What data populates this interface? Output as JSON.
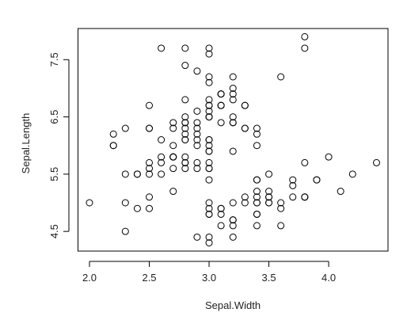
{
  "chart_data": {
    "type": "scatter",
    "x_label": "Sepal.Width",
    "y_label": "Sepal.Length",
    "x": [
      3.5,
      3.0,
      3.2,
      3.1,
      3.6,
      3.9,
      3.4,
      3.4,
      2.9,
      3.1,
      3.7,
      3.4,
      3.0,
      3.0,
      4.0,
      4.4,
      3.9,
      3.5,
      3.8,
      3.8,
      3.4,
      3.7,
      3.6,
      3.3,
      3.4,
      3.0,
      3.4,
      3.5,
      3.4,
      3.2,
      3.1,
      3.4,
      4.1,
      4.2,
      3.1,
      3.2,
      3.5,
      3.6,
      3.0,
      3.4,
      3.5,
      2.3,
      3.2,
      3.5,
      3.8,
      3.0,
      3.8,
      3.2,
      3.7,
      3.3,
      3.2,
      3.2,
      3.1,
      2.3,
      2.8,
      2.8,
      3.3,
      2.4,
      2.9,
      2.7,
      2.0,
      3.0,
      2.2,
      2.9,
      2.9,
      3.1,
      3.0,
      2.7,
      2.2,
      2.5,
      3.2,
      2.8,
      2.5,
      2.8,
      2.9,
      3.0,
      2.8,
      3.0,
      2.9,
      2.6,
      2.4,
      2.4,
      2.7,
      2.7,
      3.0,
      3.4,
      3.1,
      2.3,
      3.0,
      2.5,
      2.6,
      3.0,
      2.6,
      2.3,
      2.7,
      3.0,
      2.9,
      2.9,
      2.5,
      2.8,
      3.3,
      2.7,
      3.0,
      2.9,
      3.0,
      3.0,
      2.5,
      2.9,
      2.5,
      3.6,
      3.2,
      2.7,
      3.0,
      2.5,
      2.8,
      3.2,
      3.0,
      3.8,
      2.6,
      2.2,
      3.2,
      2.8,
      2.8,
      2.7,
      3.3,
      3.2,
      2.8,
      3.0,
      2.8,
      3.0,
      2.8,
      3.8,
      2.8,
      2.8,
      2.6,
      3.0,
      3.4,
      3.1,
      3.0,
      3.1,
      3.1,
      3.1,
      2.7,
      3.2,
      3.3,
      3.0,
      2.5,
      3.0,
      3.4,
      3.0
    ],
    "values": [
      5.1,
      4.9,
      4.7,
      4.6,
      5.0,
      5.4,
      4.6,
      5.0,
      4.4,
      4.9,
      5.4,
      4.8,
      4.8,
      4.3,
      5.8,
      5.7,
      5.4,
      5.1,
      5.7,
      5.1,
      5.4,
      5.1,
      4.6,
      5.1,
      4.8,
      5.0,
      5.0,
      5.2,
      5.2,
      4.7,
      4.8,
      5.4,
      5.2,
      5.5,
      4.9,
      5.0,
      5.5,
      4.9,
      4.4,
      5.1,
      5.0,
      4.5,
      4.4,
      5.0,
      5.1,
      4.8,
      5.1,
      4.6,
      5.3,
      5.0,
      7.0,
      6.4,
      6.9,
      5.5,
      6.5,
      5.7,
      6.3,
      4.9,
      6.6,
      5.2,
      5.0,
      5.9,
      6.0,
      6.1,
      5.6,
      6.7,
      5.6,
      5.8,
      6.2,
      5.6,
      5.9,
      6.1,
      6.3,
      6.1,
      6.4,
      6.6,
      6.8,
      6.7,
      6.0,
      5.7,
      5.5,
      5.5,
      5.8,
      6.0,
      5.4,
      6.0,
      6.7,
      6.3,
      5.6,
      5.5,
      5.5,
      6.1,
      5.8,
      5.0,
      5.6,
      5.7,
      5.7,
      6.2,
      5.1,
      5.7,
      6.3,
      5.8,
      7.1,
      6.3,
      6.5,
      7.6,
      4.9,
      7.3,
      6.7,
      7.2,
      6.5,
      6.4,
      6.8,
      5.7,
      5.8,
      6.4,
      6.5,
      7.7,
      7.7,
      6.0,
      6.9,
      5.6,
      7.7,
      6.3,
      6.7,
      7.2,
      6.2,
      6.1,
      6.4,
      7.2,
      7.4,
      7.9,
      6.4,
      6.3,
      6.1,
      7.7,
      6.3,
      6.4,
      6.0,
      6.9,
      6.7,
      6.9,
      5.8,
      6.8,
      6.7,
      6.7,
      6.3,
      6.5,
      6.2,
      5.9
    ],
    "color": "#000000",
    "xlim": [
      1.904,
      4.496
    ],
    "ylim": [
      4.156,
      8.044
    ],
    "xticks": [
      {
        "value": 2.0,
        "label": "2.0"
      },
      2.5,
      {
        "value": 3.0,
        "label": "3.0"
      },
      3.5,
      {
        "value": 4.0,
        "label": "4.0"
      }
    ],
    "yticks": [
      4.5,
      5.5,
      6.5,
      7.5
    ],
    "grid": false
  }
}
